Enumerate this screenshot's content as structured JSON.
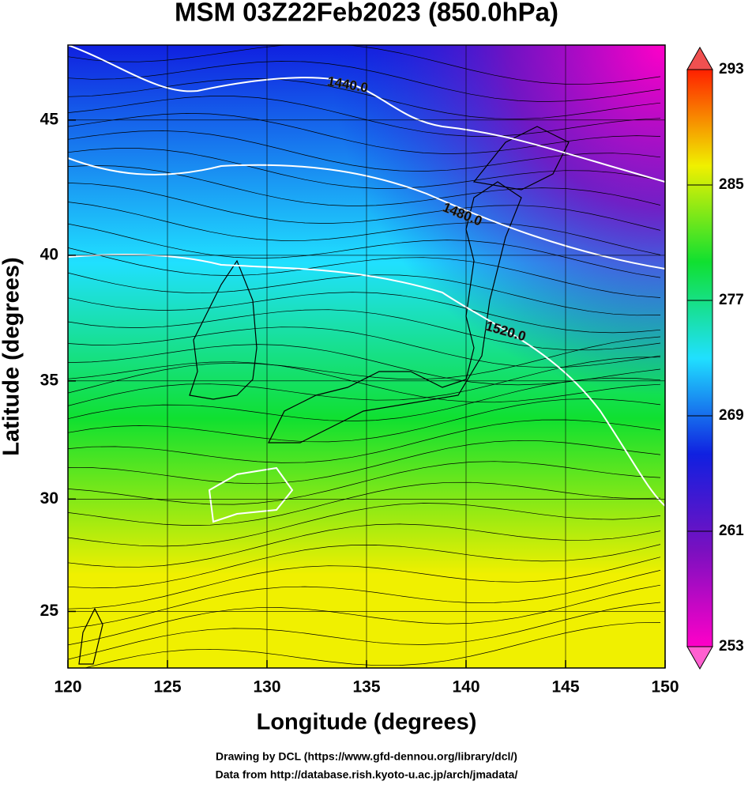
{
  "chart_data": {
    "type": "map",
    "title": "MSM 03Z22Feb2023 (850.0hPa)",
    "xlabel": "Longitude (degrees)",
    "ylabel": "Latitude  (degrees)",
    "xlim": [
      120,
      150
    ],
    "xticks": [
      120,
      125,
      130,
      135,
      140,
      145,
      150
    ],
    "ylim": [
      22.4,
      47.6
    ],
    "yticks": [
      25,
      30,
      35,
      40,
      45
    ],
    "projection": "mercator",
    "grid": true,
    "colorbar": {
      "lim": [
        253,
        293
      ],
      "ticks": [
        253,
        261,
        269,
        277,
        285,
        293
      ],
      "colors": [
        "#ff00c8",
        "#7a10c0",
        "#1020e0",
        "#20e0ff",
        "#10e030",
        "#f0f000",
        "#ff2000"
      ]
    },
    "contour_labels": [
      "1440.0",
      "1480.0",
      "1520.0"
    ],
    "credits": [
      "Drawing by DCL (https://www.gfd-dennou.org/library/dcl/)",
      "Data from http://database.rish.kyoto-u.ac.jp/arch/jmadata/"
    ]
  }
}
